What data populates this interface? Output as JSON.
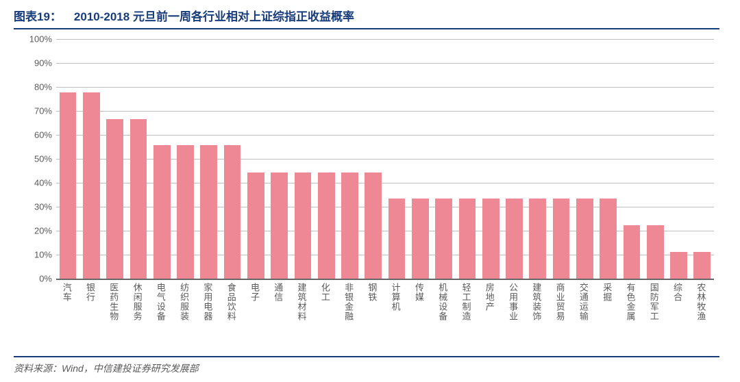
{
  "header": {
    "figure_label": "图表19：",
    "title": "2010-2018 元旦前一周各行业相对上证综指正收益概率",
    "title_color": "#183b7a",
    "title_fontsize": 17,
    "border_color": "#183b7a"
  },
  "chart": {
    "type": "bar",
    "ylim": [
      0,
      100
    ],
    "ytick_step": 10,
    "ytick_suffix": "%",
    "ytick_fontsize": 13,
    "ytick_color": "#5a5a5a",
    "grid_color": "#bfbfbf",
    "axis_color": "#666666",
    "background_color": "#ffffff",
    "bar_color": "#ef8895",
    "bar_width_pct": 72,
    "xlabel_fontsize": 13,
    "xlabel_color": "#5a5a5a",
    "categories": [
      "汽车",
      "银行",
      "医药生物",
      "休闲服务",
      "电气设备",
      "纺织服装",
      "家用电器",
      "食品饮料",
      "电子",
      "通信",
      "建筑材料",
      "化工",
      "非银金融",
      "钢铁",
      "计算机",
      "传媒",
      "机械设备",
      "轻工制造",
      "房地产",
      "公用事业",
      "建筑装饰",
      "商业贸易",
      "交通运输",
      "采掘",
      "有色金属",
      "国防军工",
      "综合",
      "农林牧渔"
    ],
    "values": [
      77.8,
      77.8,
      66.7,
      66.7,
      55.6,
      55.6,
      55.6,
      55.6,
      44.4,
      44.4,
      44.4,
      44.4,
      44.4,
      44.4,
      33.3,
      33.3,
      33.3,
      33.3,
      33.3,
      33.3,
      33.3,
      33.3,
      33.3,
      33.3,
      22.2,
      22.2,
      11.1,
      11.1
    ]
  },
  "source": {
    "text": "资料来源：Wind，中信建投证券研究发展部",
    "fontsize": 14,
    "color": "#5a5a5a",
    "border_color": "#183b7a"
  }
}
